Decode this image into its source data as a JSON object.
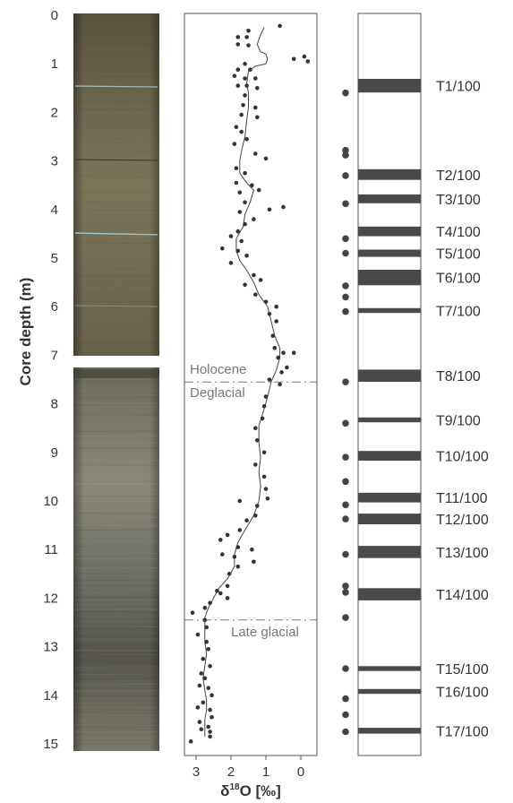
{
  "chart_data": {
    "type": "scatter",
    "ylabel": "Core depth (m)",
    "xlabel": "δ18O [‰]",
    "xlabel_main": "δ",
    "xlabel_sup": "18",
    "xlabel_rest": "O [‰]",
    "depth_ticks": [
      "0",
      "1",
      "2",
      "3",
      "4",
      "5",
      "6",
      "7",
      "8",
      "9",
      "10",
      "11",
      "12",
      "13",
      "14",
      "15"
    ],
    "x_ticks": [
      "3",
      "2",
      "1",
      "0"
    ],
    "ylim": [
      0,
      15.25
    ],
    "xlim": [
      3.35,
      -0.3
    ],
    "x_reversed": true,
    "annotations": {
      "holocene": "Holocene",
      "deglacial": "Deglacial",
      "late_glacial": "Late glacial"
    },
    "boundaries": [
      {
        "name": "Holocene/Deglacial",
        "depth": 7.55
      },
      {
        "name": "Late glacial",
        "depth": 12.45
      }
    ],
    "series": [
      {
        "type": "scatter",
        "points": [
          [
            0.6,
            0.22
          ],
          [
            1.5,
            0.32
          ],
          [
            1.55,
            0.45
          ],
          [
            1.8,
            0.45
          ],
          [
            1.8,
            0.6
          ],
          [
            1.5,
            0.62
          ],
          [
            0.2,
            0.9
          ],
          [
            -0.1,
            0.85
          ],
          [
            -0.2,
            0.95
          ],
          [
            1.6,
            1.0
          ],
          [
            1.8,
            1.12
          ],
          [
            1.45,
            1.12
          ],
          [
            1.9,
            1.25
          ],
          [
            1.6,
            1.3
          ],
          [
            1.3,
            1.3
          ],
          [
            1.8,
            1.45
          ],
          [
            1.55,
            1.45
          ],
          [
            1.25,
            1.5
          ],
          [
            1.6,
            1.65
          ],
          [
            1.65,
            1.85
          ],
          [
            1.3,
            1.9
          ],
          [
            1.7,
            2.05
          ],
          [
            1.25,
            2.1
          ],
          [
            1.85,
            2.3
          ],
          [
            1.7,
            2.4
          ],
          [
            1.55,
            2.55
          ],
          [
            1.9,
            2.65
          ],
          [
            1.3,
            2.85
          ],
          [
            1.0,
            2.95
          ],
          [
            1.85,
            3.15
          ],
          [
            1.6,
            3.25
          ],
          [
            1.85,
            3.45
          ],
          [
            1.4,
            3.5
          ],
          [
            1.2,
            3.6
          ],
          [
            1.75,
            3.65
          ],
          [
            1.6,
            3.85
          ],
          [
            0.9,
            4.0
          ],
          [
            0.5,
            3.95
          ],
          [
            1.75,
            4.05
          ],
          [
            1.35,
            4.2
          ],
          [
            1.6,
            4.3
          ],
          [
            1.8,
            4.45
          ],
          [
            2.0,
            4.55
          ],
          [
            1.7,
            4.65
          ],
          [
            1.8,
            4.85
          ],
          [
            2.25,
            4.8
          ],
          [
            1.55,
            4.95
          ],
          [
            2.0,
            5.1
          ],
          [
            1.35,
            5.35
          ],
          [
            1.15,
            5.45
          ],
          [
            1.6,
            5.55
          ],
          [
            1.3,
            5.75
          ],
          [
            1.0,
            5.9
          ],
          [
            0.7,
            6.0
          ],
          [
            0.9,
            6.15
          ],
          [
            0.7,
            6.3
          ],
          [
            0.8,
            6.6
          ],
          [
            0.75,
            6.85
          ],
          [
            0.5,
            6.95
          ],
          [
            0.2,
            6.95
          ],
          [
            0.65,
            7.05
          ],
          [
            0.4,
            7.25
          ],
          [
            0.55,
            7.35
          ],
          [
            0.9,
            7.5
          ],
          [
            0.6,
            7.6
          ],
          [
            1.0,
            7.85
          ],
          [
            1.05,
            8.05
          ],
          [
            1.1,
            8.3
          ],
          [
            1.3,
            8.5
          ],
          [
            1.25,
            8.75
          ],
          [
            1.05,
            9.0
          ],
          [
            1.3,
            9.25
          ],
          [
            1.05,
            9.5
          ],
          [
            1.0,
            9.75
          ],
          [
            0.95,
            9.95
          ],
          [
            1.75,
            10.0
          ],
          [
            1.25,
            10.1
          ],
          [
            1.3,
            10.3
          ],
          [
            1.55,
            10.4
          ],
          [
            1.75,
            10.6
          ],
          [
            2.1,
            10.7
          ],
          [
            2.3,
            10.8
          ],
          [
            1.8,
            10.95
          ],
          [
            1.4,
            11.0
          ],
          [
            2.25,
            11.1
          ],
          [
            1.9,
            11.15
          ],
          [
            1.35,
            11.25
          ],
          [
            1.8,
            11.35
          ],
          [
            2.05,
            11.5
          ],
          [
            2.1,
            11.75
          ],
          [
            2.4,
            11.85
          ],
          [
            2.3,
            11.9
          ],
          [
            2.1,
            12.0
          ],
          [
            2.6,
            12.1
          ],
          [
            2.75,
            12.2
          ],
          [
            3.1,
            12.3
          ],
          [
            2.75,
            12.45
          ],
          [
            2.7,
            12.6
          ],
          [
            2.95,
            12.75
          ],
          [
            2.7,
            12.9
          ],
          [
            2.65,
            13.05
          ],
          [
            2.8,
            13.25
          ],
          [
            2.6,
            13.4
          ],
          [
            2.85,
            13.55
          ],
          [
            2.75,
            13.65
          ],
          [
            2.9,
            13.8
          ],
          [
            2.65,
            13.85
          ],
          [
            2.55,
            14.0
          ],
          [
            2.8,
            14.15
          ],
          [
            2.95,
            14.25
          ],
          [
            2.6,
            14.3
          ],
          [
            2.55,
            14.45
          ],
          [
            2.9,
            14.55
          ],
          [
            2.65,
            14.65
          ],
          [
            2.85,
            14.7
          ],
          [
            2.6,
            14.75
          ],
          [
            2.6,
            14.85
          ],
          [
            3.15,
            14.95
          ]
        ]
      },
      {
        "type": "line",
        "points": [
          [
            1.05,
            0.25
          ],
          [
            1.15,
            0.4
          ],
          [
            1.25,
            0.6
          ],
          [
            1.15,
            0.75
          ],
          [
            1.0,
            0.8
          ],
          [
            0.95,
            0.9
          ],
          [
            1.0,
            1.0
          ],
          [
            1.3,
            1.05
          ],
          [
            1.5,
            1.15
          ],
          [
            1.55,
            1.4
          ],
          [
            1.5,
            1.6
          ],
          [
            1.5,
            1.9
          ],
          [
            1.55,
            2.15
          ],
          [
            1.6,
            2.5
          ],
          [
            1.7,
            2.8
          ],
          [
            1.75,
            3.0
          ],
          [
            1.75,
            3.25
          ],
          [
            1.55,
            3.45
          ],
          [
            1.35,
            3.6
          ],
          [
            1.45,
            3.85
          ],
          [
            1.6,
            4.1
          ],
          [
            1.65,
            4.35
          ],
          [
            1.85,
            4.6
          ],
          [
            1.85,
            4.85
          ],
          [
            1.75,
            5.05
          ],
          [
            1.55,
            5.25
          ],
          [
            1.35,
            5.5
          ],
          [
            1.2,
            5.75
          ],
          [
            0.95,
            6.0
          ],
          [
            0.85,
            6.3
          ],
          [
            0.75,
            6.6
          ],
          [
            0.6,
            6.85
          ],
          [
            0.6,
            7.05
          ],
          [
            0.7,
            7.3
          ],
          [
            0.85,
            7.55
          ],
          [
            0.95,
            7.85
          ],
          [
            1.05,
            8.1
          ],
          [
            1.2,
            8.45
          ],
          [
            1.2,
            8.8
          ],
          [
            1.15,
            9.1
          ],
          [
            1.2,
            9.4
          ],
          [
            1.15,
            9.7
          ],
          [
            1.2,
            10.0
          ],
          [
            1.35,
            10.3
          ],
          [
            1.6,
            10.6
          ],
          [
            1.8,
            10.85
          ],
          [
            1.9,
            11.1
          ],
          [
            1.9,
            11.35
          ],
          [
            2.1,
            11.6
          ],
          [
            2.35,
            11.8
          ],
          [
            2.5,
            12.0
          ],
          [
            2.65,
            12.2
          ],
          [
            2.75,
            12.4
          ],
          [
            2.75,
            12.65
          ],
          [
            2.75,
            12.9
          ],
          [
            2.7,
            13.15
          ],
          [
            2.75,
            13.4
          ],
          [
            2.8,
            13.65
          ],
          [
            2.75,
            13.9
          ],
          [
            2.7,
            14.1
          ],
          [
            2.7,
            14.3
          ],
          [
            2.75,
            14.5
          ],
          [
            2.75,
            14.7
          ],
          [
            2.75,
            14.85
          ]
        ]
      }
    ],
    "tephra_layers": [
      {
        "label": "T1/100",
        "depth": 1.45,
        "thickness": 0.28
      },
      {
        "label": "T2/100",
        "depth": 3.28,
        "thickness": 0.22
      },
      {
        "label": "T3/100",
        "depth": 3.78,
        "thickness": 0.18
      },
      {
        "label": "T4/100",
        "depth": 4.45,
        "thickness": 0.2
      },
      {
        "label": "T5/100",
        "depth": 4.9,
        "thickness": 0.15
      },
      {
        "label": "T6/100",
        "depth": 5.4,
        "thickness": 0.32
      },
      {
        "label": "T7/100",
        "depth": 6.08,
        "thickness": 0.1
      },
      {
        "label": "T8/100",
        "depth": 7.42,
        "thickness": 0.25
      },
      {
        "label": "T9/100",
        "depth": 8.33,
        "thickness": 0.1
      },
      {
        "label": "T10/100",
        "depth": 9.07,
        "thickness": 0.2
      },
      {
        "label": "T11/100",
        "depth": 9.93,
        "thickness": 0.2
      },
      {
        "label": "T12/100",
        "depth": 10.37,
        "thickness": 0.22
      },
      {
        "label": "T13/100",
        "depth": 11.05,
        "thickness": 0.25
      },
      {
        "label": "T14/100",
        "depth": 11.92,
        "thickness": 0.25
      },
      {
        "label": "T15/100",
        "depth": 13.45,
        "thickness": 0.1
      },
      {
        "label": "T16/100",
        "depth": 13.92,
        "thickness": 0.1
      },
      {
        "label": "T17/100",
        "depth": 14.73,
        "thickness": 0.12
      }
    ],
    "tephra_label_depths": [
      1.45,
      3.28,
      3.78,
      4.45,
      4.9,
      5.4,
      6.08,
      7.42,
      8.33,
      9.07,
      9.93,
      10.37,
      11.05,
      11.92,
      13.45,
      13.92,
      14.73
    ],
    "sample_dots": [
      1.6,
      2.78,
      2.88,
      3.3,
      3.88,
      4.6,
      4.9,
      5.57,
      5.8,
      6.1,
      7.55,
      8.4,
      9.1,
      9.6,
      10.08,
      10.37,
      11.1,
      11.75,
      11.88,
      12.4,
      13.45,
      14.07,
      14.4,
      14.75
    ]
  }
}
